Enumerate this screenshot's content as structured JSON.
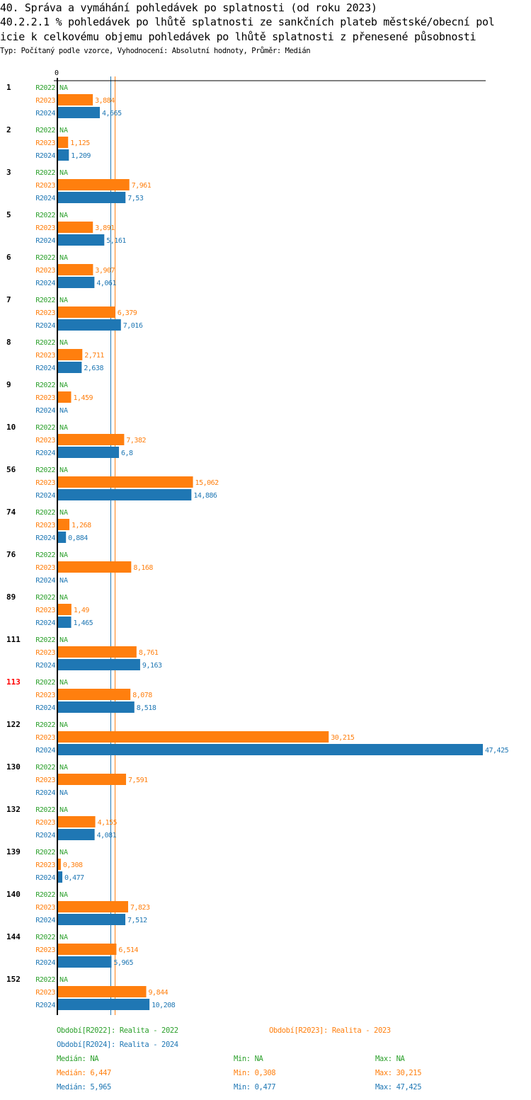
{
  "header": {
    "title_line1": "40. Správa a vymáhání pohledávek po splatnosti (od roku 2023)",
    "title_line2": "40.2.2.1 % pohledávek po lhůtě splatnosti ze sankčních plateb městské/obecní  pol",
    "title_line3": "icie k celkovému objemu pohledávek po lhůtě splatnosti z přenesené působnosti",
    "subtitle": "Typ: Počítaný podle vzorce, Vyhodnocení: Absolutní hodnoty, Průměr: Medián"
  },
  "colors": {
    "R2022": "#2ca02c",
    "R2023": "#ff7f0e",
    "R2024": "#1f77b4",
    "highlight": "#ff0000",
    "axis": "#000000"
  },
  "chart_data": {
    "type": "bar",
    "orientation": "horizontal",
    "x_tick_label": "0",
    "xlim": [
      0,
      47.425
    ],
    "highlighted_category": "113",
    "categories": [
      "1",
      "2",
      "3",
      "5",
      "6",
      "7",
      "8",
      "9",
      "10",
      "56",
      "74",
      "76",
      "89",
      "111",
      "113",
      "122",
      "130",
      "132",
      "139",
      "140",
      "144",
      "152"
    ],
    "series": [
      {
        "name": "R2022",
        "values": [
          null,
          null,
          null,
          null,
          null,
          null,
          null,
          null,
          null,
          null,
          null,
          null,
          null,
          null,
          null,
          null,
          null,
          null,
          null,
          null,
          null,
          null
        ],
        "labels": [
          "NA",
          "NA",
          "NA",
          "NA",
          "NA",
          "NA",
          "NA",
          "NA",
          "NA",
          "NA",
          "NA",
          "NA",
          "NA",
          "NA",
          "NA",
          "NA",
          "NA",
          "NA",
          "NA",
          "NA",
          "NA",
          "NA"
        ]
      },
      {
        "name": "R2023",
        "values": [
          3.884,
          1.125,
          7.961,
          3.891,
          3.907,
          6.379,
          2.711,
          1.459,
          7.382,
          15.062,
          1.268,
          8.168,
          1.49,
          8.761,
          8.078,
          30.215,
          7.591,
          4.155,
          0.308,
          7.823,
          6.514,
          9.844
        ],
        "labels": [
          "3,884",
          "1,125",
          "7,961",
          "3,891",
          "3,907",
          "6,379",
          "2,711",
          "1,459",
          "7,382",
          "15,062",
          "1,268",
          "8,168",
          "1,49",
          "8,761",
          "8,078",
          "30,215",
          "7,591",
          "4,155",
          "0,308",
          "7,823",
          "6,514",
          "9,844"
        ]
      },
      {
        "name": "R2024",
        "values": [
          4.665,
          1.209,
          7.53,
          5.161,
          4.061,
          7.016,
          2.638,
          null,
          6.8,
          14.886,
          0.884,
          null,
          1.465,
          9.163,
          8.518,
          47.425,
          null,
          4.081,
          0.477,
          7.512,
          5.965,
          10.208
        ],
        "labels": [
          "4,665",
          "1,209",
          "7,53",
          "5,161",
          "4,061",
          "7,016",
          "2,638",
          "NA",
          "6,8",
          "14,886",
          "0,884",
          "NA",
          "1,465",
          "9,163",
          "8,518",
          "47,425",
          "NA",
          "4,081",
          "0,477",
          "7,512",
          "5,965",
          "10,208"
        ]
      }
    ],
    "median_lines": [
      {
        "series": "R2024",
        "value": 5.965
      },
      {
        "series": "R2023",
        "value": 6.447
      }
    ]
  },
  "legend": {
    "periods": [
      {
        "series": "R2022",
        "text": "Období[R2022]: Realita - 2022"
      },
      {
        "series": "R2023",
        "text": "Období[R2023]: Realita - 2023"
      },
      {
        "series": "R2024",
        "text": "Období[R2024]: Realita - 2024"
      }
    ],
    "stats": [
      {
        "series": "R2022",
        "median": "Medián: NA",
        "min": "Min: NA",
        "max": "Max: NA"
      },
      {
        "series": "R2023",
        "median": "Medián: 6,447",
        "min": "Min: 0,308",
        "max": "Max: 30,215"
      },
      {
        "series": "R2024",
        "median": "Medián: 5,965",
        "min": "Min: 0,477",
        "max": "Max: 47,425"
      }
    ]
  }
}
